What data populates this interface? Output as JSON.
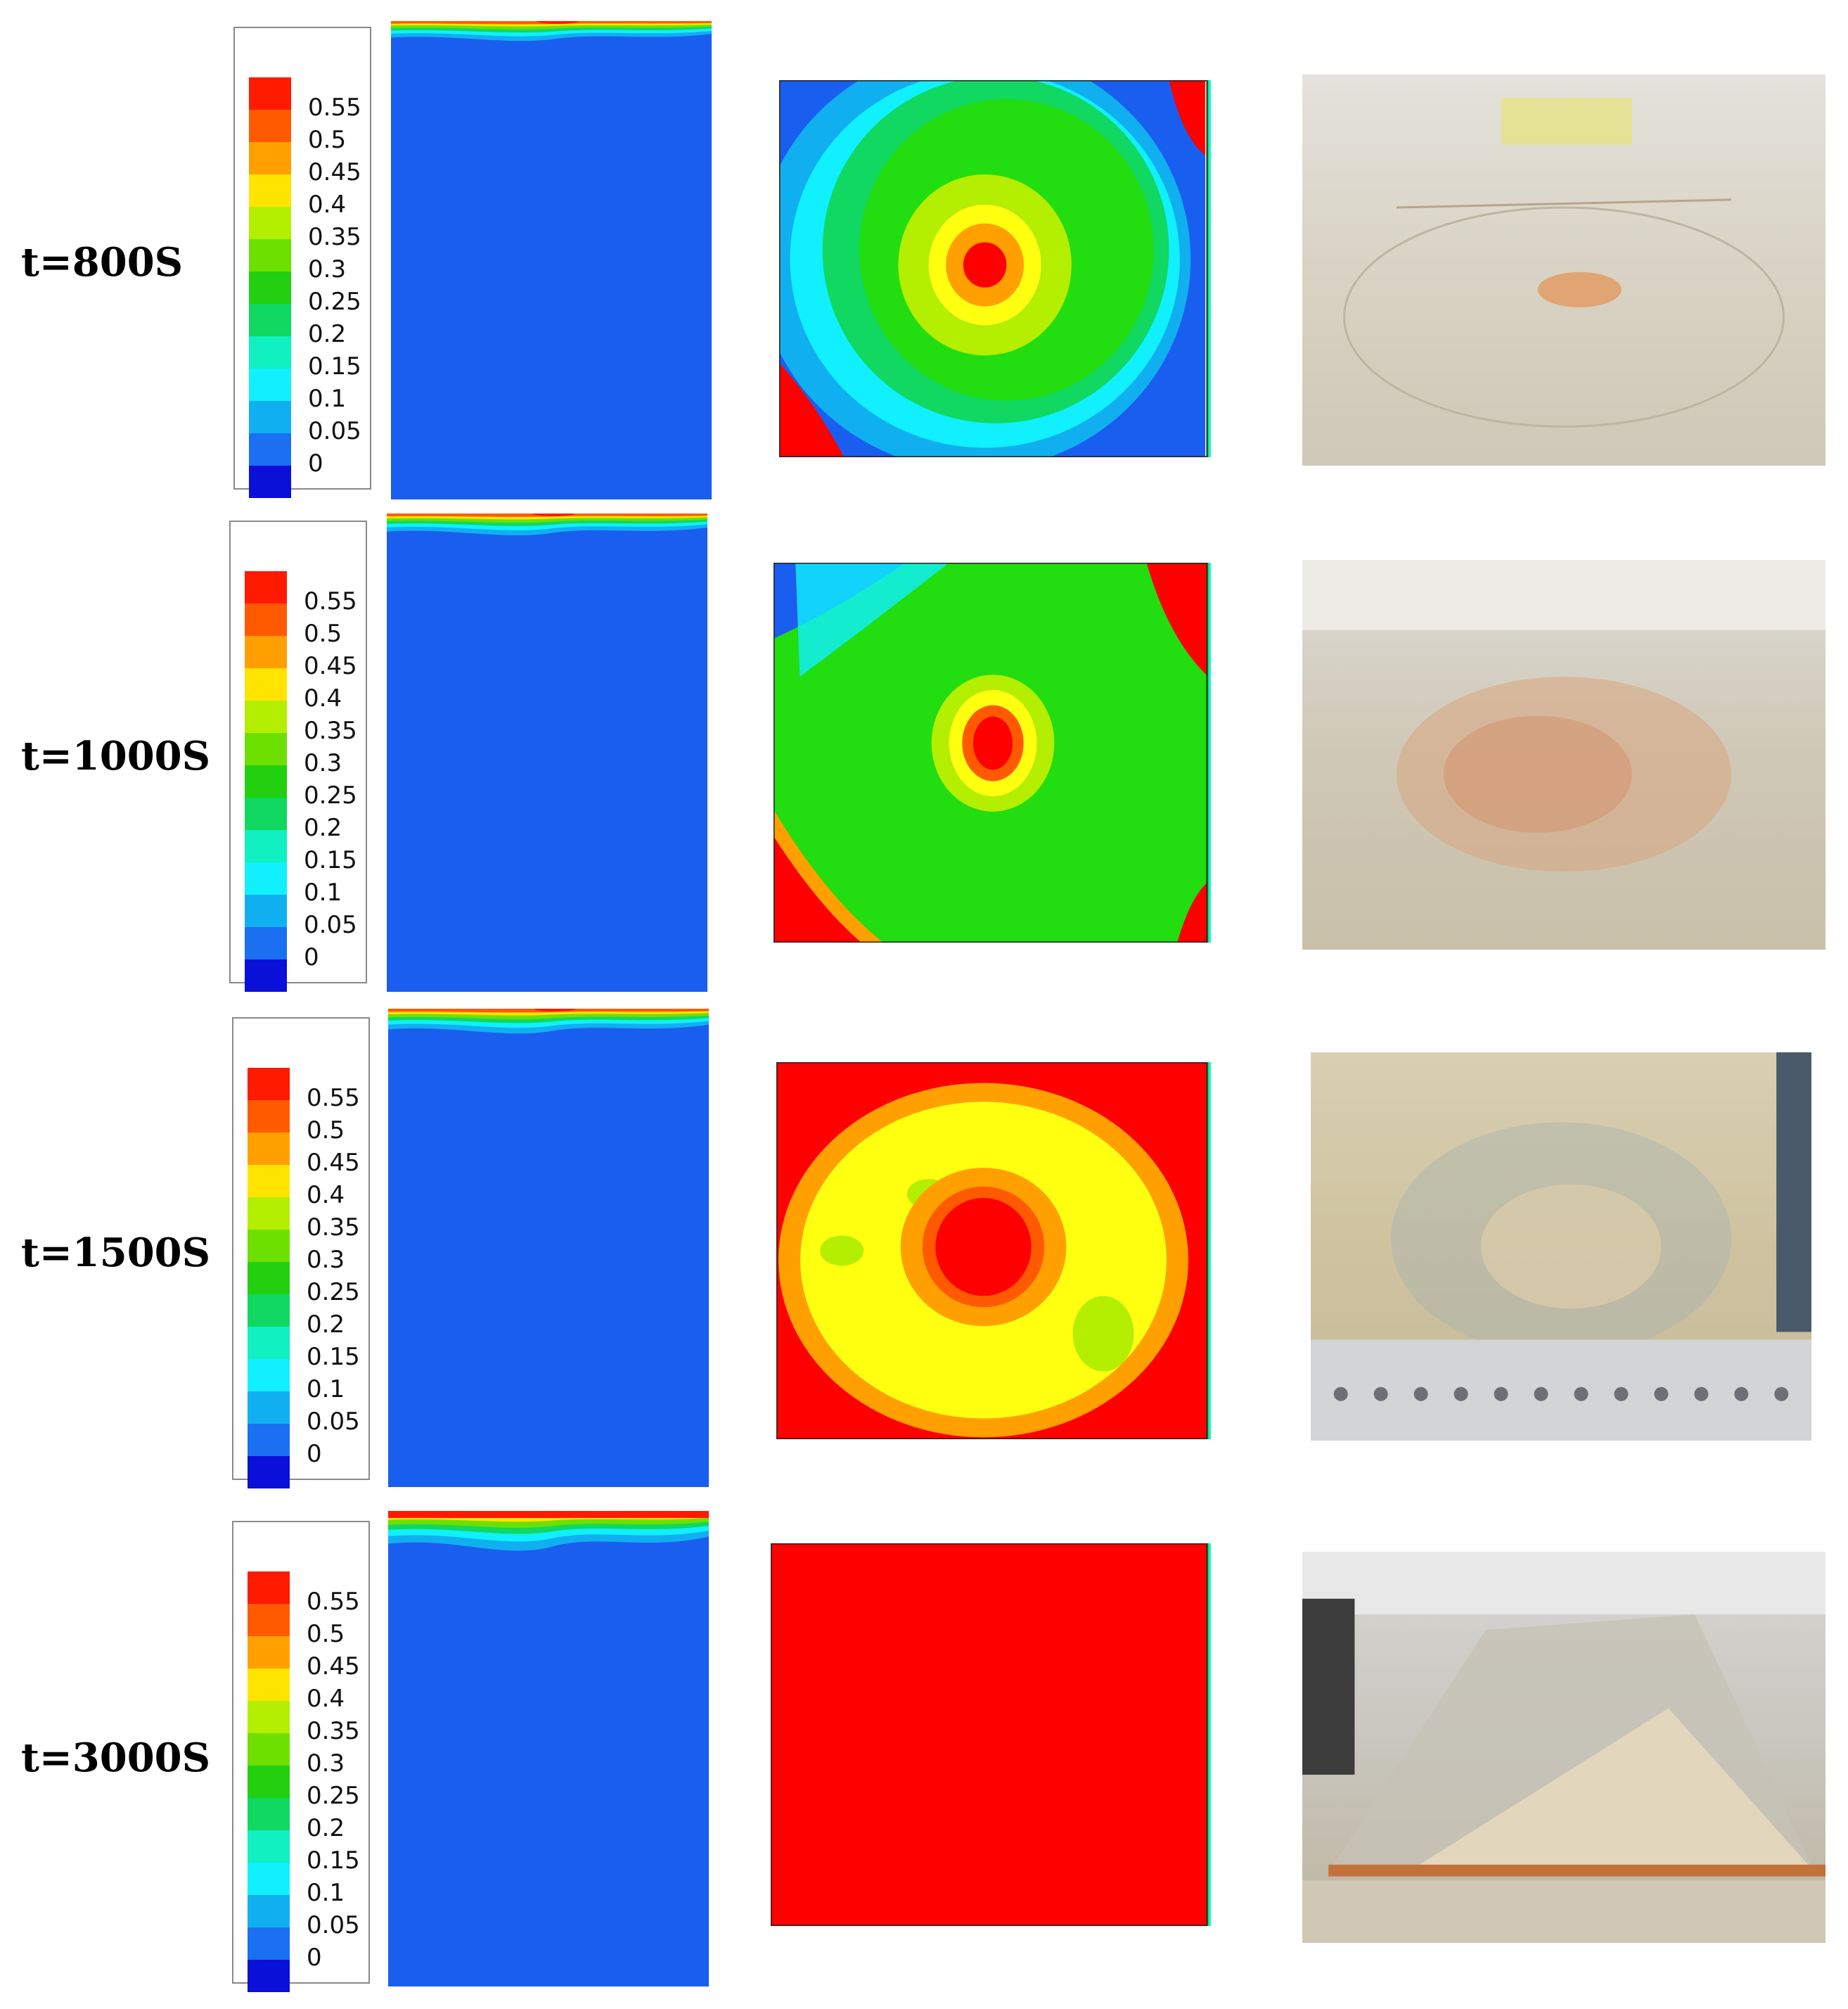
{
  "rows": [
    {
      "time_label": "t=800S"
    },
    {
      "time_label": "t=1000S"
    },
    {
      "time_label": "t=1500S"
    },
    {
      "time_label": "t=3000S"
    }
  ],
  "legend": {
    "ticks": [
      "0.55",
      "0.5",
      "0.45",
      "0.4",
      "0.35",
      "0.3",
      "0.25",
      "0.2",
      "0.15",
      "0.1",
      "0.05",
      "0"
    ],
    "colors": [
      "#ff1a00",
      "#ff5a00",
      "#ffa000",
      "#ffe400",
      "#b4ee00",
      "#6ee000",
      "#22d010",
      "#10d860",
      "#10f0c0",
      "#10f0ff",
      "#10b0f0",
      "#1a70f0",
      "#0a10d8"
    ]
  },
  "colors": {
    "low": "#1a5ef0",
    "red": "#ff0000",
    "green": "#22dd10",
    "cyan": "#10f0ff",
    "yellow": "#ffff10"
  }
}
